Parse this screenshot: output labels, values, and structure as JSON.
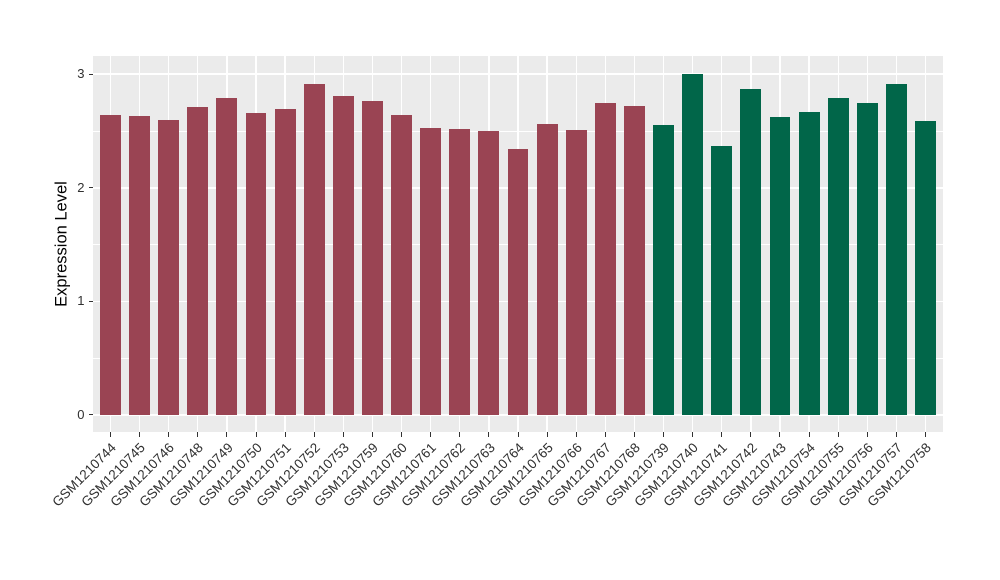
{
  "chart_data": {
    "type": "bar",
    "title": "",
    "xlabel": "",
    "ylabel": "Expression Level",
    "ylim": [
      0,
      3
    ],
    "yticks": [
      0,
      1,
      2,
      3
    ],
    "yticks_minor": [
      0.5,
      1.5,
      2.5
    ],
    "grid": true,
    "legend": false,
    "panel_background": "#EBEBEB",
    "gridline_color": "#FFFFFF",
    "axis_text_color": "#303030",
    "group_colors": {
      "group1": "#9A4453",
      "group2": "#016649"
    },
    "bars": [
      {
        "label": "GSM1210744",
        "value": 2.64,
        "group": "group1"
      },
      {
        "label": "GSM1210745",
        "value": 2.63,
        "group": "group1"
      },
      {
        "label": "GSM1210746",
        "value": 2.6,
        "group": "group1"
      },
      {
        "label": "GSM1210748",
        "value": 2.71,
        "group": "group1"
      },
      {
        "label": "GSM1210749",
        "value": 2.79,
        "group": "group1"
      },
      {
        "label": "GSM1210750",
        "value": 2.66,
        "group": "group1"
      },
      {
        "label": "GSM1210751",
        "value": 2.69,
        "group": "group1"
      },
      {
        "label": "GSM1210752",
        "value": 2.91,
        "group": "group1"
      },
      {
        "label": "GSM1210753",
        "value": 2.81,
        "group": "group1"
      },
      {
        "label": "GSM1210759",
        "value": 2.76,
        "group": "group1"
      },
      {
        "label": "GSM1210760",
        "value": 2.64,
        "group": "group1"
      },
      {
        "label": "GSM1210761",
        "value": 2.53,
        "group": "group1"
      },
      {
        "label": "GSM1210762",
        "value": 2.52,
        "group": "group1"
      },
      {
        "label": "GSM1210763",
        "value": 2.5,
        "group": "group1"
      },
      {
        "label": "GSM1210764",
        "value": 2.34,
        "group": "group1"
      },
      {
        "label": "GSM1210765",
        "value": 2.56,
        "group": "group1"
      },
      {
        "label": "GSM1210766",
        "value": 2.51,
        "group": "group1"
      },
      {
        "label": "GSM1210767",
        "value": 2.75,
        "group": "group1"
      },
      {
        "label": "GSM1210768",
        "value": 2.72,
        "group": "group1"
      },
      {
        "label": "GSM1210739",
        "value": 2.55,
        "group": "group2"
      },
      {
        "label": "GSM1210740",
        "value": 3.0,
        "group": "group2"
      },
      {
        "label": "GSM1210741",
        "value": 2.37,
        "group": "group2"
      },
      {
        "label": "GSM1210742",
        "value": 2.87,
        "group": "group2"
      },
      {
        "label": "GSM1210743",
        "value": 2.62,
        "group": "group2"
      },
      {
        "label": "GSM1210754",
        "value": 2.67,
        "group": "group2"
      },
      {
        "label": "GSM1210755",
        "value": 2.79,
        "group": "group2"
      },
      {
        "label": "GSM1210756",
        "value": 2.75,
        "group": "group2"
      },
      {
        "label": "GSM1210757",
        "value": 2.91,
        "group": "group2"
      },
      {
        "label": "GSM1210758",
        "value": 2.59,
        "group": "group2"
      }
    ]
  }
}
